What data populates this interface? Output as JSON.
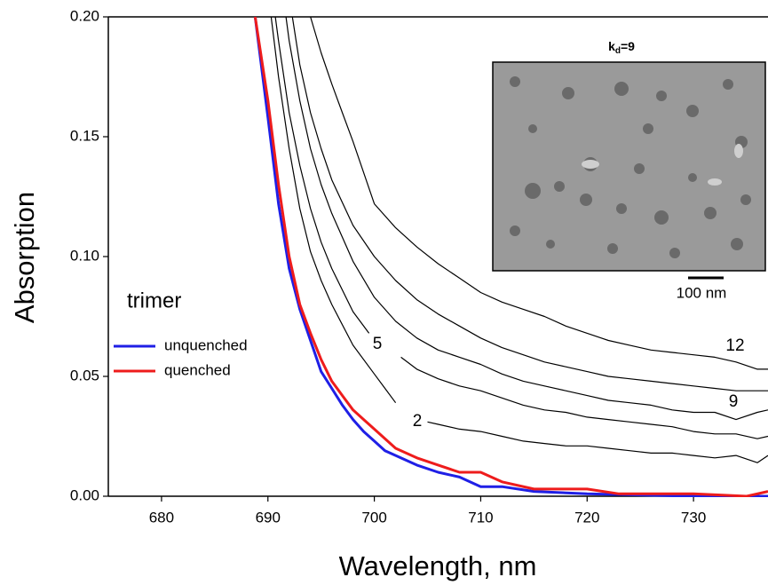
{
  "chart_data": {
    "type": "line",
    "x_label": "Wavelength, nm",
    "y_label": "Absorption",
    "xlim": [
      675,
      737
    ],
    "ylim": [
      0,
      0.2
    ],
    "xticks": [
      680,
      690,
      700,
      710,
      720,
      730
    ],
    "yticks": [
      {
        "value": 0,
        "label": "0.00"
      },
      {
        "value": 0.05,
        "label": "0.05"
      },
      {
        "value": 0.1,
        "label": "0.10"
      },
      {
        "value": 0.15,
        "label": "0.15"
      },
      {
        "value": 0.2,
        "label": "0.20"
      }
    ],
    "legend_title": "trimer",
    "legend": "left",
    "series": [
      {
        "name": "unquenched",
        "color": "#1f1fe6",
        "width": 3,
        "x": [
          688.8,
          690,
          691,
          692,
          693,
          694,
          695,
          696,
          697,
          698,
          699,
          700,
          701,
          702,
          704,
          706,
          708,
          710,
          712,
          715,
          720,
          730,
          737
        ],
        "values": [
          0.2,
          0.158,
          0.122,
          0.095,
          0.078,
          0.065,
          0.052,
          0.045,
          0.038,
          0.032,
          0.027,
          0.023,
          0.019,
          0.017,
          0.013,
          0.01,
          0.008,
          0.004,
          0.004,
          0.002,
          0.001,
          0,
          0
        ]
      },
      {
        "name": "quenched",
        "color": "#ee1c1c",
        "width": 3,
        "x": [
          688.8,
          690,
          691,
          692,
          693,
          694,
          695,
          696,
          697,
          698,
          699,
          700,
          702,
          704,
          706,
          708,
          710,
          712,
          715,
          720,
          723,
          730,
          735,
          737
        ],
        "values": [
          0.2,
          0.165,
          0.13,
          0.1,
          0.08,
          0.068,
          0.057,
          0.048,
          0.042,
          0.036,
          0.032,
          0.028,
          0.02,
          0.016,
          0.013,
          0.01,
          0.01,
          0.006,
          0.003,
          0.003,
          0.001,
          0.001,
          0,
          0.002
        ]
      },
      {
        "name": "12",
        "color": "#000000",
        "width": 1.2,
        "x": [
          694,
          695,
          696,
          697,
          698,
          700,
          702,
          704,
          706,
          708,
          710,
          712,
          714,
          716,
          718,
          720,
          722,
          724,
          726,
          728,
          730,
          732,
          734,
          736,
          737
        ],
        "values": [
          0.2,
          0.185,
          0.172,
          0.16,
          0.148,
          0.122,
          0.112,
          0.104,
          0.097,
          0.091,
          0.085,
          0.081,
          0.078,
          0.075,
          0.071,
          0.068,
          0.065,
          0.063,
          0.061,
          0.06,
          0.059,
          0.058,
          0.056,
          0.053,
          0.053
        ]
      },
      {
        "color": "#000000",
        "width": 1.2,
        "x": [
          692.3,
          693,
          694,
          695,
          696,
          698,
          700,
          702,
          704,
          706,
          708,
          710,
          712,
          714,
          716,
          718,
          720,
          722,
          724,
          726,
          728,
          730,
          732,
          734,
          736,
          737
        ],
        "values": [
          0.2,
          0.18,
          0.16,
          0.145,
          0.132,
          0.113,
          0.1,
          0.09,
          0.082,
          0.076,
          0.071,
          0.066,
          0.062,
          0.059,
          0.056,
          0.054,
          0.052,
          0.05,
          0.049,
          0.048,
          0.047,
          0.046,
          0.045,
          0.044,
          0.044,
          0.044
        ]
      },
      {
        "name": "9",
        "color": "#000000",
        "width": 1.2,
        "x": [
          691.7,
          692,
          693,
          694,
          695,
          696,
          698,
          700,
          702,
          704,
          706,
          708,
          710,
          712,
          714,
          716,
          718,
          720,
          722,
          724,
          726,
          728,
          730,
          732,
          734,
          736,
          737
        ],
        "values": [
          0.2,
          0.19,
          0.165,
          0.145,
          0.13,
          0.118,
          0.098,
          0.083,
          0.073,
          0.066,
          0.061,
          0.058,
          0.055,
          0.051,
          0.048,
          0.046,
          0.044,
          0.042,
          0.04,
          0.039,
          0.038,
          0.036,
          0.035,
          0.035,
          0.032,
          0.035,
          0.036
        ]
      },
      {
        "name": "5",
        "color": "#000000",
        "width": 1.2,
        "x": [
          690.7,
          691,
          692,
          693,
          694,
          695,
          696,
          698,
          699.5,
          701,
          702.5,
          704,
          706,
          708,
          710,
          712,
          714,
          716,
          718,
          720,
          722,
          724,
          726,
          728,
          730,
          732,
          734,
          736,
          737
        ],
        "values": [
          0.2,
          0.19,
          0.16,
          0.138,
          0.12,
          0.106,
          0.095,
          0.077,
          0.068,
          null,
          0.058,
          0.053,
          0.049,
          0.046,
          0.044,
          0.041,
          0.038,
          0.036,
          0.035,
          0.033,
          0.032,
          0.031,
          0.03,
          0.029,
          0.027,
          0.026,
          0.026,
          0.024,
          0.025
        ]
      },
      {
        "name": "2",
        "color": "#000000",
        "width": 1.2,
        "x": [
          690.3,
          691,
          692,
          693,
          694,
          695,
          696,
          698,
          700,
          701,
          702,
          703.5,
          705,
          706,
          708,
          710,
          712,
          714,
          716,
          718,
          720,
          722,
          724,
          726,
          728,
          730,
          732,
          734,
          736,
          737
        ],
        "values": [
          0.2,
          0.175,
          0.145,
          0.12,
          0.102,
          0.09,
          0.08,
          0.063,
          0.051,
          0.045,
          0.039,
          null,
          0.031,
          0.03,
          0.028,
          0.027,
          0.025,
          0.023,
          0.022,
          0.021,
          0.021,
          0.02,
          0.019,
          0.018,
          0.018,
          0.017,
          0.016,
          0.017,
          0.014,
          0.017
        ]
      }
    ],
    "inset": {
      "title_main": "k",
      "title_sub": "d",
      "title_rest": "=9",
      "scale_bar": "100 nm"
    }
  }
}
